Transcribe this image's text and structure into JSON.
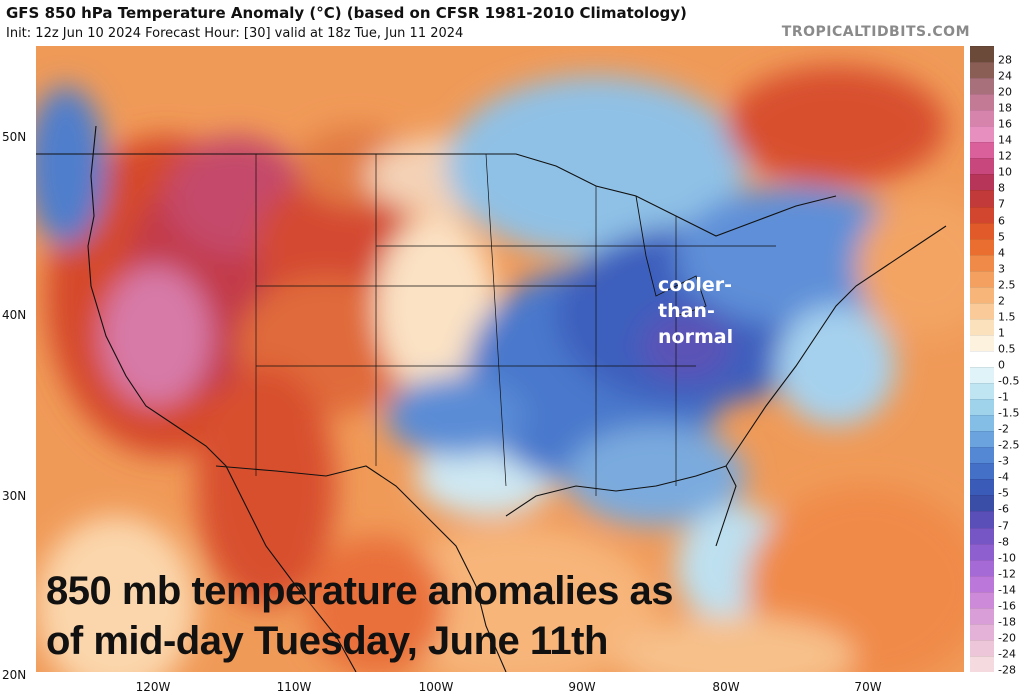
{
  "header": {
    "title": "GFS 850 hPa Temperature Anomaly (°C) (based on CFSR 1981-2010 Climatology)",
    "subtitle": "Init: 12z Jun 10 2024   Forecast Hour: [30]   valid at 18z Tue, Jun 11 2024",
    "watermark": "TROPICALTIDBITS.COM"
  },
  "map": {
    "lat_labels": [
      "50N",
      "40N",
      "30N",
      "20N"
    ],
    "lon_labels": [
      "120W",
      "110W",
      "100W",
      "90W",
      "80W",
      "70W"
    ],
    "annotation_lines": [
      "cooler-",
      "than-",
      "normal"
    ],
    "caption_lines": [
      "850 mb temperature anomalies as",
      "of mid-day Tuesday, June 11th"
    ]
  },
  "colorbar": {
    "levels": [
      {
        "label": "28",
        "color": "#6b4a3a"
      },
      {
        "label": "24",
        "color": "#8a5e54"
      },
      {
        "label": "20",
        "color": "#a8707a"
      },
      {
        "label": "18",
        "color": "#c27a95"
      },
      {
        "label": "16",
        "color": "#d784ad"
      },
      {
        "label": "14",
        "color": "#e78fbf"
      },
      {
        "label": "12",
        "color": "#d9609a"
      },
      {
        "label": "10",
        "color": "#c8477d"
      },
      {
        "label": "8",
        "color": "#b8355a"
      },
      {
        "label": "7",
        "color": "#c23a3a"
      },
      {
        "label": "6",
        "color": "#d2452e"
      },
      {
        "label": "5",
        "color": "#e05a2a"
      },
      {
        "label": "4",
        "color": "#ea6e30"
      },
      {
        "label": "3",
        "color": "#f08a48"
      },
      {
        "label": "2.5",
        "color": "#f4a060"
      },
      {
        "label": "2",
        "color": "#f7b57a"
      },
      {
        "label": "1.5",
        "color": "#facb98"
      },
      {
        "label": "1",
        "color": "#fce2bc"
      },
      {
        "label": "0.5",
        "color": "#fdf2de"
      },
      {
        "label": "0",
        "color": "#ffffff"
      },
      {
        "label": "-0.5",
        "color": "#dff3f8"
      },
      {
        "label": "-1",
        "color": "#bfe5f2"
      },
      {
        "label": "-1.5",
        "color": "#9fd3ec"
      },
      {
        "label": "-2",
        "color": "#84bde6"
      },
      {
        "label": "-2.5",
        "color": "#6aa3de"
      },
      {
        "label": "-3",
        "color": "#5588d4"
      },
      {
        "label": "-4",
        "color": "#4470c8"
      },
      {
        "label": "-5",
        "color": "#3a5cb8"
      },
      {
        "label": "-6",
        "color": "#3a4ea8"
      },
      {
        "label": "-7",
        "color": "#5a4fb8"
      },
      {
        "label": "-8",
        "color": "#7656c4"
      },
      {
        "label": "-10",
        "color": "#8e5fcf"
      },
      {
        "label": "-12",
        "color": "#a56ad6"
      },
      {
        "label": "-14",
        "color": "#bb78da"
      },
      {
        "label": "-16",
        "color": "#cc8ad8"
      },
      {
        "label": "-18",
        "color": "#d99ed8"
      },
      {
        "label": "-20",
        "color": "#e4b2d8"
      },
      {
        "label": "-24",
        "color": "#edc6da"
      },
      {
        "label": "-28",
        "color": "#f5dadf"
      }
    ]
  }
}
